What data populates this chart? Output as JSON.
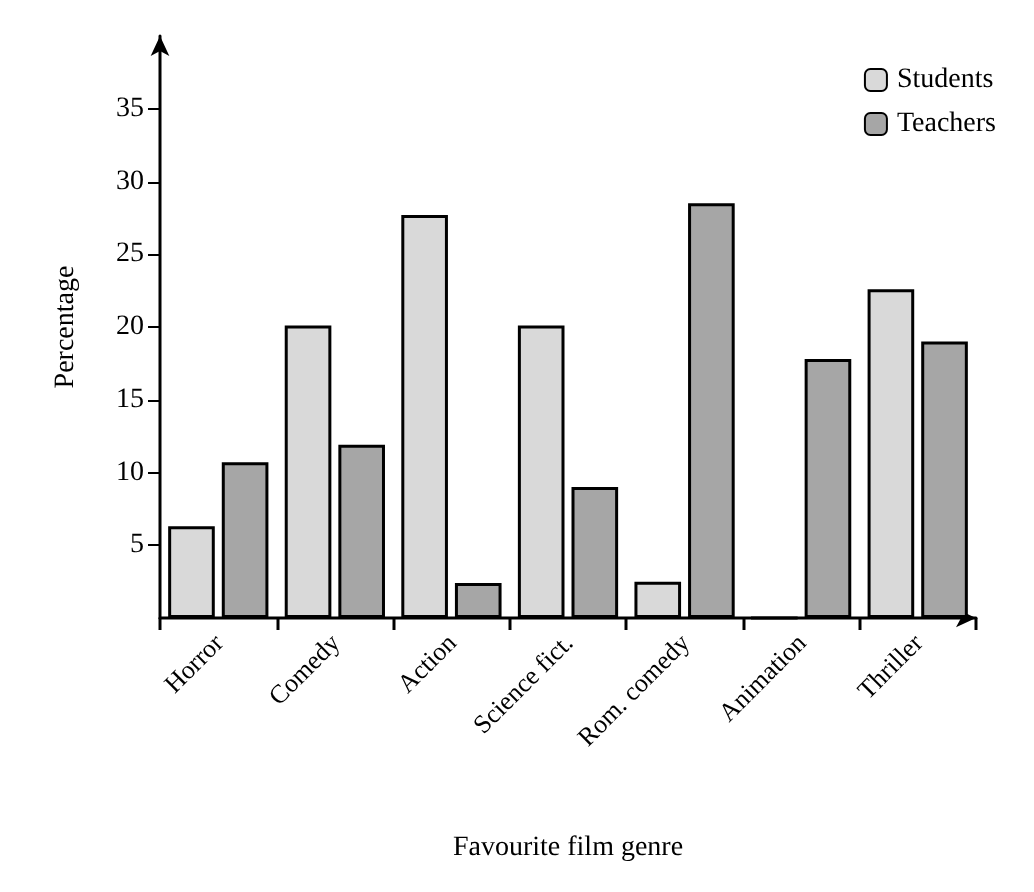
{
  "chart_data": {
    "type": "bar",
    "xlabel": "Favourite film genre",
    "ylabel": "Percentage",
    "categories": [
      "Horror",
      "Comedy",
      "Action",
      "Science fict.",
      "Rom. comedy",
      "Animation",
      "Thriller"
    ],
    "series": [
      {
        "name": "Students",
        "color": "#d9d9d9",
        "values": [
          6.3,
          20.1,
          27.7,
          20.1,
          2.5,
          0,
          22.6
        ]
      },
      {
        "name": "Teachers",
        "color": "#a6a6a6",
        "values": [
          10.7,
          11.9,
          2.4,
          9.0,
          28.5,
          17.8,
          19.0
        ]
      }
    ],
    "ylim": [
      0,
      40
    ],
    "yticks": [
      5,
      10,
      15,
      20,
      25,
      30,
      35
    ],
    "grid": false,
    "legend": "top right"
  }
}
